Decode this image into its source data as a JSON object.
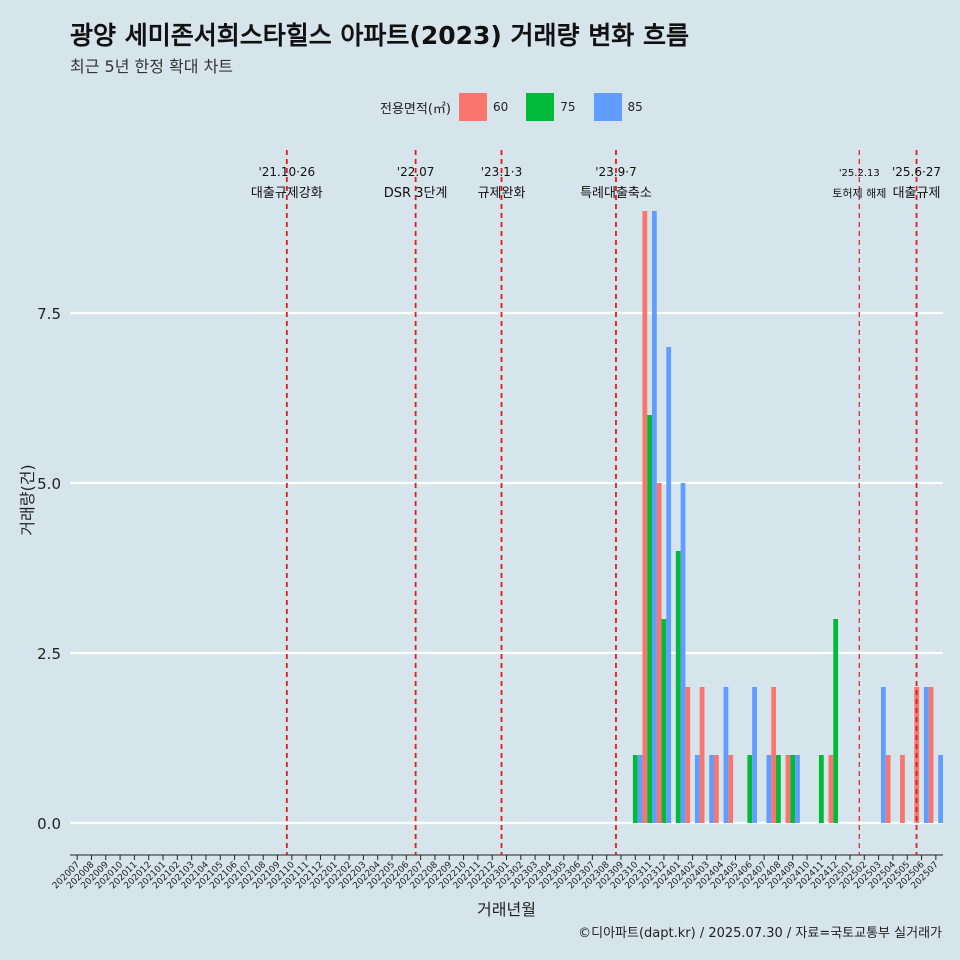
{
  "header": {
    "title": "광양 세미존서희스타힐스 아파트(2023) 거래량 변화 흐름",
    "subtitle": "최근 5년 한정 확대 차트"
  },
  "legend": {
    "title": "전용면적(㎡)",
    "items": [
      {
        "label": "60",
        "color": "#f8766d"
      },
      {
        "label": "75",
        "color": "#00ba38"
      },
      {
        "label": "85",
        "color": "#619cff"
      }
    ]
  },
  "caption": "©디아파트(dapt.kr) / 2025.07.30 / 자료=국토교통부 실거래가",
  "chart_data": {
    "type": "bar",
    "xlabel": "거래년월",
    "ylabel": "거래량(건)",
    "ylim": [
      0,
      9.2
    ],
    "yticks": [
      0,
      2.5,
      5,
      7.5
    ],
    "ytick_labels": [
      "0.0",
      "2.5",
      "5.0",
      "7.5"
    ],
    "grid": "horizontal",
    "legend_position": "top",
    "categories": [
      "202007",
      "202008",
      "202009",
      "202010",
      "202011",
      "202012",
      "202101",
      "202102",
      "202103",
      "202104",
      "202105",
      "202106",
      "202107",
      "202108",
      "202109",
      "202110",
      "202111",
      "202112",
      "202201",
      "202202",
      "202203",
      "202204",
      "202205",
      "202206",
      "202207",
      "202208",
      "202209",
      "202210",
      "202211",
      "202212",
      "202301",
      "202302",
      "202303",
      "202304",
      "202305",
      "202306",
      "202307",
      "202308",
      "202309",
      "202310",
      "202311",
      "202312",
      "202401",
      "202402",
      "202403",
      "202404",
      "202405",
      "202406",
      "202407",
      "202408",
      "202409",
      "202410",
      "202411",
      "202412",
      "202501",
      "202502",
      "202503",
      "202504",
      "202505",
      "202506",
      "202507"
    ],
    "series": [
      {
        "name": "60",
        "color": "#f8766d",
        "values": [
          {
            "x": "202311",
            "y": 9
          },
          {
            "x": "202312",
            "y": 5
          },
          {
            "x": "202402",
            "y": 2
          },
          {
            "x": "202403",
            "y": 2
          },
          {
            "x": "202404",
            "y": 1
          },
          {
            "x": "202405",
            "y": 1
          },
          {
            "x": "202408",
            "y": 2
          },
          {
            "x": "202409",
            "y": 1
          },
          {
            "x": "202412",
            "y": 1
          },
          {
            "x": "202504",
            "y": 1
          },
          {
            "x": "202505",
            "y": 1
          },
          {
            "x": "202506",
            "y": 2
          },
          {
            "x": "202507",
            "y": 2
          }
        ]
      },
      {
        "name": "75",
        "color": "#00ba38",
        "values": [
          {
            "x": "202310",
            "y": 1
          },
          {
            "x": "202311",
            "y": 6
          },
          {
            "x": "202312",
            "y": 3
          },
          {
            "x": "202401",
            "y": 4
          },
          {
            "x": "202406",
            "y": 1
          },
          {
            "x": "202408",
            "y": 1
          },
          {
            "x": "202409",
            "y": 1
          },
          {
            "x": "202411",
            "y": 1
          },
          {
            "x": "202412",
            "y": 3
          }
        ]
      },
      {
        "name": "85",
        "color": "#619cff",
        "values": [
          {
            "x": "202310",
            "y": 1
          },
          {
            "x": "202311",
            "y": 9
          },
          {
            "x": "202312",
            "y": 7
          },
          {
            "x": "202401",
            "y": 5
          },
          {
            "x": "202402",
            "y": 1
          },
          {
            "x": "202403",
            "y": 1
          },
          {
            "x": "202404",
            "y": 2
          },
          {
            "x": "202406",
            "y": 2
          },
          {
            "x": "202407",
            "y": 1
          },
          {
            "x": "202409",
            "y": 1
          },
          {
            "x": "202503",
            "y": 2
          },
          {
            "x": "202506",
            "y": 2
          },
          {
            "x": "202507",
            "y": 1
          }
        ]
      }
    ],
    "annotations": [
      {
        "x": "202110",
        "date": "'21.10·26",
        "label": "대출규제강화"
      },
      {
        "x": "202207",
        "date": "'22.07",
        "label": "DSR 3단계"
      },
      {
        "x": "202301",
        "date": "'23.1·3",
        "label": "규제완화"
      },
      {
        "x": "202309",
        "date": "'23.9·7",
        "label": "특례대출축소"
      },
      {
        "x": "202502",
        "date": "'25.2.13",
        "label": "토허제 해제"
      },
      {
        "x": "202506",
        "date": "'25.6·27",
        "label": "대출규제"
      }
    ],
    "annotation_line_color": "#e31a1c"
  }
}
